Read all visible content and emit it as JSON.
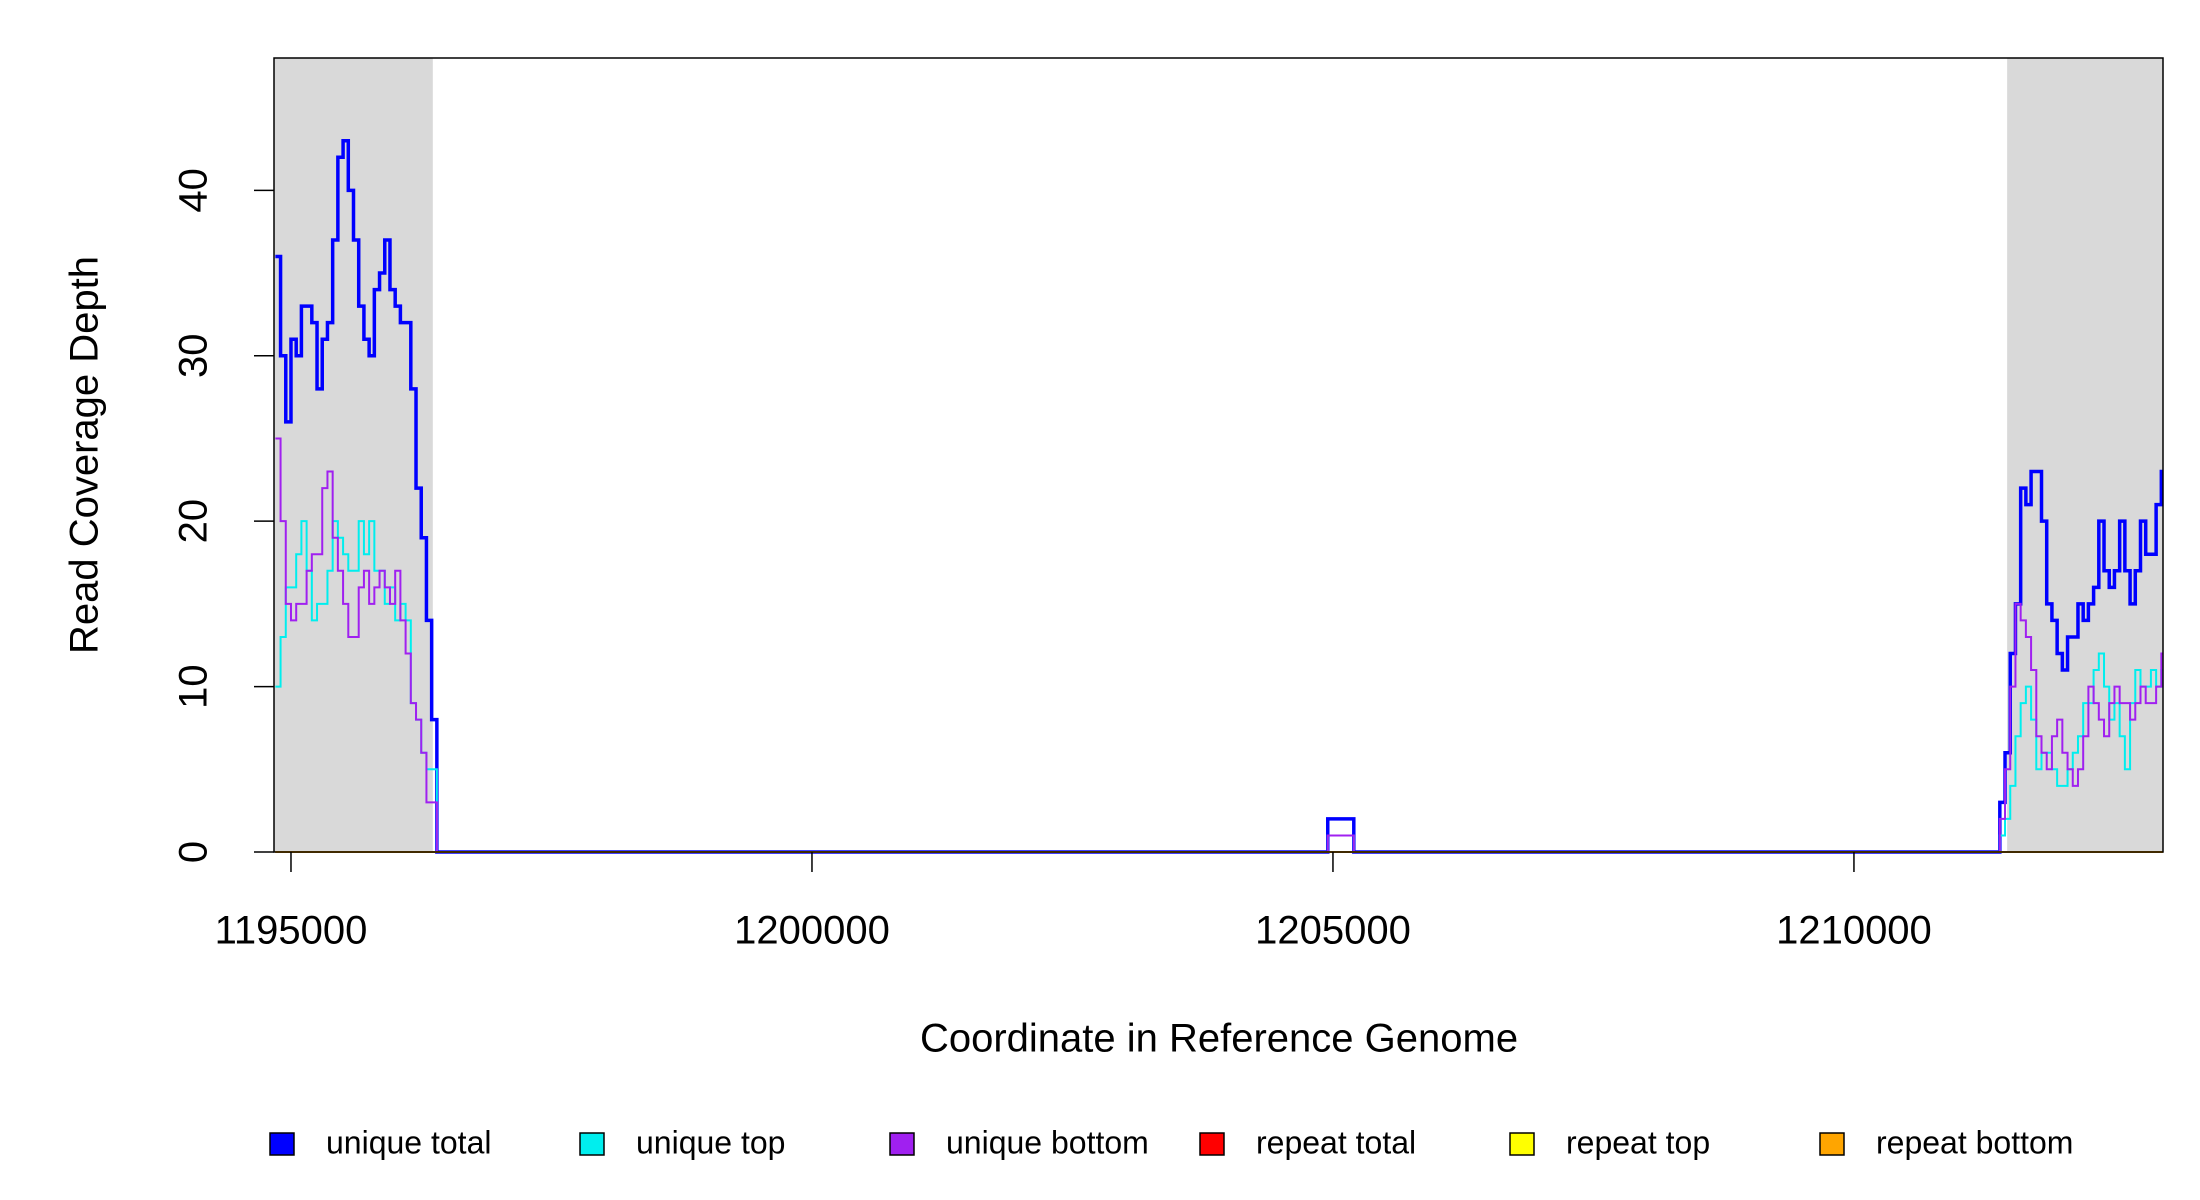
{
  "chart_data": {
    "type": "step",
    "x_label": "Coordinate in Reference Genome",
    "y_label": "Read Coverage Depth",
    "xlim": [
      1194837,
      1212966
    ],
    "ylim": [
      0,
      48
    ],
    "xticks": [
      1195000,
      1200000,
      1205000,
      1210000
    ],
    "yticks": [
      0,
      10,
      20,
      30,
      40
    ],
    "shaded_regions": [
      [
        1194837,
        1196361
      ],
      [
        1211470,
        1212966
      ]
    ],
    "shade_color": "#d9d9d9",
    "x": [
      1194850,
      1194900,
      1194950,
      1195000,
      1195050,
      1195100,
      1195150,
      1195200,
      1195250,
      1195300,
      1195350,
      1195400,
      1195450,
      1195500,
      1195550,
      1195600,
      1195650,
      1195700,
      1195750,
      1195800,
      1195850,
      1195900,
      1195950,
      1196000,
      1196050,
      1196100,
      1196150,
      1196200,
      1196250,
      1196300,
      1196350,
      1196400,
      1204950,
      1205200,
      1211400,
      1211450,
      1211500,
      1211550,
      1211600,
      1211650,
      1211700,
      1211750,
      1211800,
      1211850,
      1211900,
      1211950,
      1212000,
      1212050,
      1212100,
      1212150,
      1212200,
      1212250,
      1212300,
      1212350,
      1212400,
      1212450,
      1212500,
      1212550,
      1212600,
      1212650,
      1212700,
      1212750,
      1212800,
      1212850,
      1212900,
      1212950
    ],
    "series": [
      {
        "name": "unique total",
        "color": "#0000ff",
        "values": [
          36,
          30,
          26,
          31,
          30,
          33,
          33,
          32,
          28,
          31,
          32,
          37,
          42,
          43,
          40,
          37,
          33,
          31,
          30,
          34,
          35,
          37,
          34,
          33,
          32,
          32,
          28,
          22,
          19,
          14,
          8,
          0,
          2,
          0,
          3,
          6,
          12,
          15,
          22,
          21,
          23,
          23,
          20,
          15,
          14,
          12,
          11,
          13,
          13,
          15,
          14,
          15,
          16,
          20,
          17,
          16,
          17,
          20,
          17,
          15,
          17,
          20,
          18,
          18,
          21,
          23
        ]
      },
      {
        "name": "unique top",
        "color": "#00eeee",
        "values": [
          10,
          13,
          16,
          16,
          18,
          20,
          17,
          14,
          15,
          15,
          17,
          20,
          19,
          18,
          17,
          17,
          20,
          18,
          20,
          17,
          17,
          15,
          16,
          14,
          15,
          14,
          9,
          8,
          6,
          5,
          5,
          0,
          1,
          0,
          1,
          2,
          4,
          7,
          9,
          10,
          8,
          5,
          6,
          6,
          5,
          4,
          4,
          5,
          6,
          7,
          9,
          9,
          11,
          12,
          10,
          8,
          9,
          7,
          5,
          9,
          11,
          10,
          10,
          11,
          10,
          11
        ]
      },
      {
        "name": "unique bottom",
        "color": "#a020f0",
        "values": [
          25,
          20,
          15,
          14,
          15,
          15,
          17,
          18,
          18,
          22,
          23,
          19,
          17,
          15,
          13,
          13,
          16,
          17,
          15,
          16,
          17,
          16,
          15,
          17,
          14,
          12,
          9,
          8,
          6,
          3,
          3,
          0,
          1,
          0,
          2,
          5,
          10,
          15,
          14,
          13,
          11,
          7,
          6,
          5,
          7,
          8,
          6,
          5,
          4,
          5,
          7,
          10,
          9,
          8,
          7,
          9,
          10,
          9,
          9,
          8,
          9,
          10,
          9,
          9,
          10,
          12
        ]
      },
      {
        "name": "repeat total",
        "color": "#ff0000",
        "values": [
          0,
          0,
          0,
          0,
          0,
          0,
          0,
          0,
          0,
          0,
          0,
          0,
          0,
          0,
          0,
          0,
          0,
          0,
          0,
          0,
          0,
          0,
          0,
          0,
          0,
          0,
          0,
          0,
          0,
          0,
          0,
          0,
          0,
          0,
          0,
          0,
          0,
          0,
          0,
          0,
          0,
          0,
          0,
          0,
          0,
          0,
          0,
          0,
          0,
          0,
          0,
          0,
          0,
          0,
          0,
          0,
          0,
          0,
          0,
          0,
          0,
          0,
          0,
          0,
          0,
          0
        ]
      },
      {
        "name": "repeat top",
        "color": "#ffff00",
        "values": [
          0,
          0,
          0,
          0,
          0,
          0,
          0,
          0,
          0,
          0,
          0,
          0,
          0,
          0,
          0,
          0,
          0,
          0,
          0,
          0,
          0,
          0,
          0,
          0,
          0,
          0,
          0,
          0,
          0,
          0,
          0,
          0,
          0,
          0,
          0,
          0,
          0,
          0,
          0,
          0,
          0,
          0,
          0,
          0,
          0,
          0,
          0,
          0,
          0,
          0,
          0,
          0,
          0,
          0,
          0,
          0,
          0,
          0,
          0,
          0,
          0,
          0,
          0,
          0,
          0,
          0
        ]
      },
      {
        "name": "repeat bottom",
        "color": "#ffa500",
        "values": [
          0,
          0,
          0,
          0,
          0,
          0,
          0,
          0,
          0,
          0,
          0,
          0,
          0,
          0,
          0,
          0,
          0,
          0,
          0,
          0,
          0,
          0,
          0,
          0,
          0,
          0,
          0,
          0,
          0,
          0,
          0,
          0,
          0,
          0,
          0,
          0,
          0,
          0,
          0,
          0,
          0,
          0,
          0,
          0,
          0,
          0,
          0,
          0,
          0,
          0,
          0,
          0,
          0,
          0,
          0,
          0,
          0,
          0,
          0,
          0,
          0,
          0,
          0,
          0,
          0,
          0
        ]
      }
    ]
  }
}
